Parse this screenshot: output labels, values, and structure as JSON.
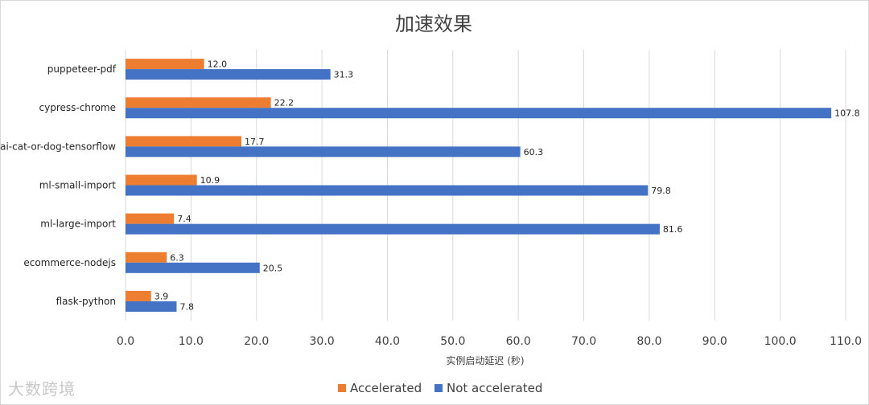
{
  "chart_data": {
    "type": "bar",
    "orientation": "horizontal",
    "title": "加速效果",
    "xlabel": "实例启动延迟 (秒)",
    "ylabel": "",
    "xlim": [
      0,
      110
    ],
    "x_ticks": [
      "0.0",
      "10.0",
      "20.0",
      "30.0",
      "40.0",
      "50.0",
      "60.0",
      "70.0",
      "80.0",
      "90.0",
      "100.0",
      "110.0"
    ],
    "grid": true,
    "legend": "bottom",
    "categories": [
      "puppeteer-pdf",
      "cypress-chrome",
      "ai-cat-or-dog-tensorflow",
      "ml-small-import",
      "ml-large-import",
      "ecommerce-nodejs",
      "flask-python"
    ],
    "series": [
      {
        "name": "Accelerated",
        "color": "#ED7D31",
        "values": [
          12.0,
          22.2,
          17.7,
          10.9,
          7.4,
          6.3,
          3.9
        ],
        "labels": [
          "12.0",
          "22.2",
          "17.7",
          "10.9",
          "7.4",
          "6.3",
          "3.9"
        ]
      },
      {
        "name": "Not accelerated",
        "color": "#4472C4",
        "values": [
          31.3,
          107.8,
          60.3,
          79.8,
          81.6,
          20.5,
          7.8
        ],
        "labels": [
          "31.3",
          "107.8",
          "60.3",
          "79.8",
          "81.6",
          "20.5",
          "7.8"
        ]
      }
    ]
  },
  "watermark": "大数跨境"
}
